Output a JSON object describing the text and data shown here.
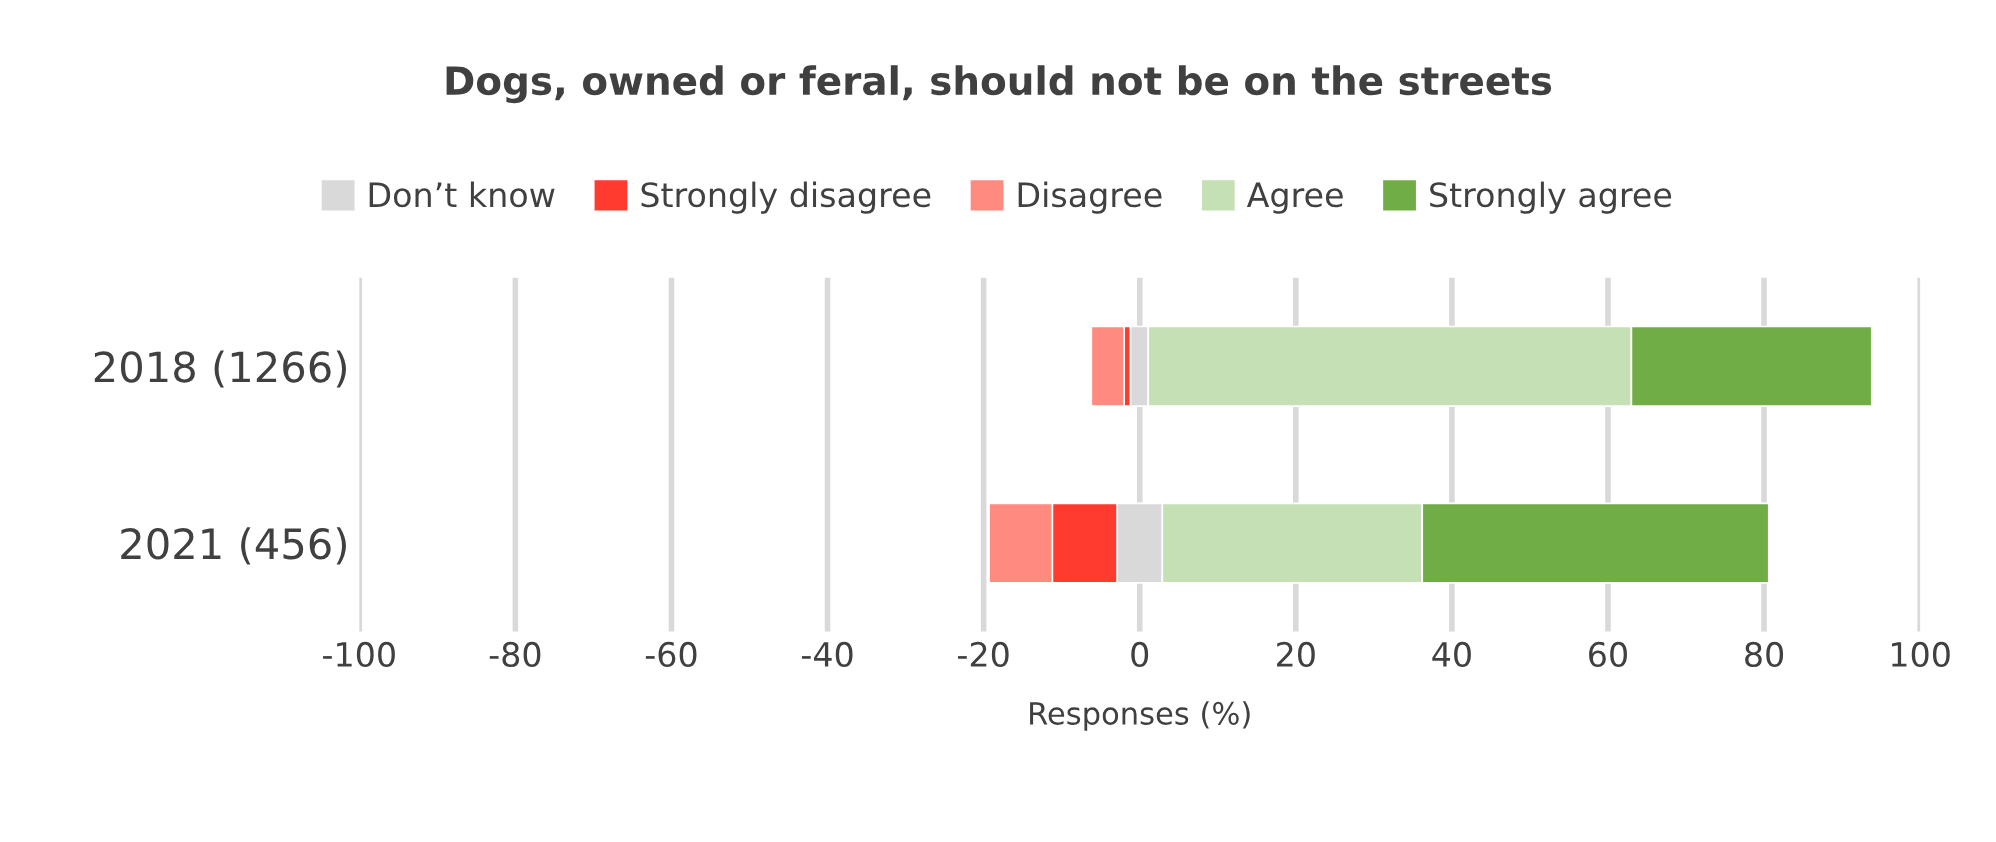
{
  "chart_data": {
    "type": "bar",
    "orientation": "horizontal",
    "title": "Dogs, owned or feral, should not be on the streets",
    "xlabel": "Responses (%)",
    "categories": [
      "2018 (1266)",
      "2021 (456)"
    ],
    "series": [
      {
        "name": "Don’t know",
        "color": "#d9d9d9",
        "base": [
          -1.2,
          -2.9
        ],
        "values": [
          2.3,
          5.8
        ]
      },
      {
        "name": "Strongly disagree",
        "color": "#ff3b30",
        "base": [
          -2.0,
          -11.2
        ],
        "values": [
          0.8,
          8.3
        ]
      },
      {
        "name": "Disagree",
        "color": "#ff8a80",
        "base": [
          -6.2,
          -19.3
        ],
        "values": [
          4.2,
          8.1
        ]
      },
      {
        "name": "Agree",
        "color": "#c5e0b4",
        "base": [
          1.1,
          2.9
        ],
        "values": [
          61.9,
          33.3
        ]
      },
      {
        "name": "Strongly agree",
        "color": "#70ad47",
        "base": [
          63.0,
          36.2
        ],
        "values": [
          30.8,
          44.4
        ]
      }
    ],
    "xlim": [
      -100,
      100
    ],
    "xticks": [
      -100,
      -80,
      -60,
      -40,
      -20,
      0,
      20,
      40,
      60,
      80,
      100
    ],
    "grid": "x",
    "legend": "top"
  }
}
